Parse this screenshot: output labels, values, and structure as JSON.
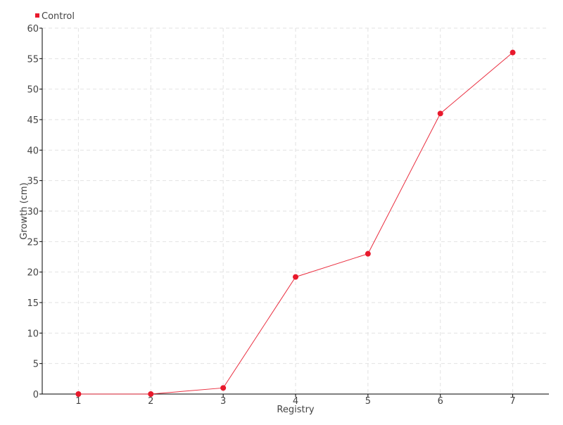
{
  "chart_data": {
    "type": "line",
    "title": "",
    "xlabel": "Registry",
    "ylabel": "Growth (cm)",
    "x": [
      1,
      2,
      3,
      4,
      5,
      6,
      7
    ],
    "xlim": [
      0.5,
      7.5
    ],
    "ylim": [
      0,
      60
    ],
    "yticks": [
      0,
      5,
      10,
      15,
      20,
      25,
      30,
      35,
      40,
      45,
      50,
      55,
      60
    ],
    "grid": true,
    "legend_position": "top-left",
    "series": [
      {
        "name": "Control",
        "color": "#e8192c",
        "values": [
          0,
          0,
          1,
          19.2,
          23,
          46,
          56
        ]
      }
    ]
  }
}
